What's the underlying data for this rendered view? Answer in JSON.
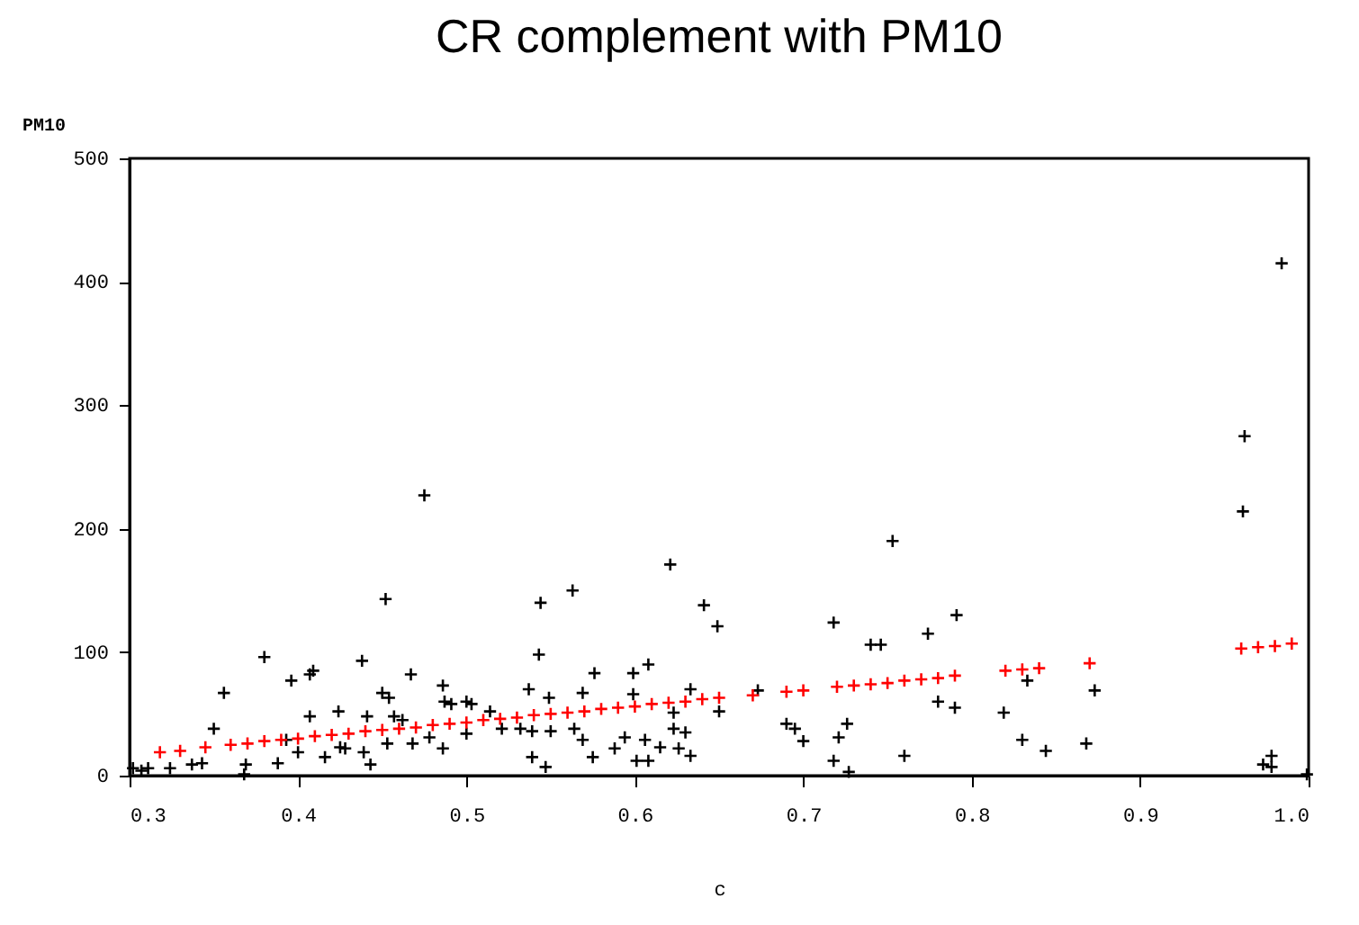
{
  "chart_data": {
    "type": "scatter",
    "title": "CR complement with PM10",
    "xlabel": "c",
    "ylabel": "PM10",
    "xlim": [
      0.3,
      1.0
    ],
    "xticks": [
      0.3,
      0.4,
      0.5,
      0.6,
      0.7,
      0.8,
      0.9,
      {
        "value": 1.0,
        "label": "1.0"
      }
    ],
    "ylim": [
      0,
      500
    ],
    "yticks": [
      0,
      100,
      200,
      300,
      400,
      500
    ],
    "grid": false,
    "marker": "cross",
    "series": [
      {
        "color": "#000000",
        "x": [
          0.302,
          0.307,
          0.311,
          0.324,
          0.337,
          0.343,
          0.35,
          0.356,
          0.368,
          0.369,
          0.38,
          0.388,
          0.393,
          0.396,
          0.4,
          0.407,
          0.409,
          0.407,
          0.416,
          0.424,
          0.425,
          0.428,
          0.438,
          0.439,
          0.441,
          0.443,
          0.452,
          0.45,
          0.453,
          0.454,
          0.457,
          0.462,
          0.467,
          0.468,
          0.478,
          0.475,
          0.486,
          0.486,
          0.487,
          0.491,
          0.5,
          0.5,
          0.503,
          0.514,
          0.521,
          0.532,
          0.537,
          0.539,
          0.539,
          0.543,
          0.544,
          0.547,
          0.549,
          0.55,
          0.563,
          0.564,
          0.569,
          0.569,
          0.575,
          0.576,
          0.588,
          0.594,
          0.599,
          0.599,
          0.601,
          0.606,
          0.608,
          0.608,
          0.615,
          0.621,
          0.623,
          0.623,
          0.626,
          0.63,
          0.633,
          0.633,
          0.641,
          0.649,
          0.65,
          0.673,
          0.69,
          0.695,
          0.7,
          0.718,
          0.718,
          0.721,
          0.726,
          0.727,
          0.74,
          0.746,
          0.753,
          0.76,
          0.774,
          0.78,
          0.791,
          0.79,
          0.819,
          0.83,
          0.833,
          0.844,
          0.868,
          0.873,
          0.961,
          0.962,
          0.984,
          0.973,
          0.978,
          0.978,
          0.999
        ],
        "values": [
          6,
          4,
          6,
          6,
          9,
          10,
          38,
          67,
          1,
          9,
          96,
          10,
          29,
          77,
          19,
          82,
          85,
          48,
          15,
          52,
          23,
          22,
          93,
          19,
          48,
          9,
          143,
          67,
          26,
          63,
          48,
          45,
          82,
          26,
          31,
          227,
          73,
          22,
          60,
          58,
          60,
          34,
          58,
          52,
          38,
          38,
          70,
          36,
          15,
          98,
          140,
          7,
          63,
          36,
          150,
          38,
          29,
          67,
          15,
          83,
          22,
          31,
          83,
          66,
          12,
          29,
          90,
          12,
          23,
          171,
          51,
          38,
          22,
          35,
          70,
          16,
          138,
          121,
          52,
          69,
          42,
          38,
          28,
          124,
          12,
          31,
          42,
          3,
          106,
          106,
          190,
          16,
          115,
          60,
          130,
          55,
          51,
          29,
          77,
          20,
          26,
          69,
          214,
          275,
          415,
          9,
          16,
          7,
          1
        ]
      },
      {
        "color": "#ff0000",
        "x": [
          0.318,
          0.33,
          0.345,
          0.36,
          0.37,
          0.38,
          0.39,
          0.4,
          0.41,
          0.42,
          0.43,
          0.44,
          0.45,
          0.46,
          0.47,
          0.48,
          0.49,
          0.5,
          0.51,
          0.52,
          0.53,
          0.54,
          0.55,
          0.56,
          0.57,
          0.58,
          0.59,
          0.6,
          0.61,
          0.62,
          0.63,
          0.64,
          0.65,
          0.67,
          0.69,
          0.7,
          0.72,
          0.73,
          0.74,
          0.75,
          0.76,
          0.77,
          0.78,
          0.79,
          0.82,
          0.83,
          0.84,
          0.87,
          0.96,
          0.97,
          0.98,
          0.99
        ],
        "values": [
          19,
          20,
          23,
          25,
          26,
          28,
          29,
          30,
          32,
          33,
          34,
          36,
          37,
          38,
          39,
          41,
          42,
          43,
          45,
          46,
          47,
          49,
          50,
          51,
          52,
          54,
          55,
          56,
          58,
          59,
          60,
          62,
          63,
          65,
          68,
          69,
          72,
          73,
          74,
          75,
          77,
          78,
          79,
          81,
          85,
          86,
          87,
          91,
          103,
          104,
          105,
          107
        ]
      }
    ]
  }
}
